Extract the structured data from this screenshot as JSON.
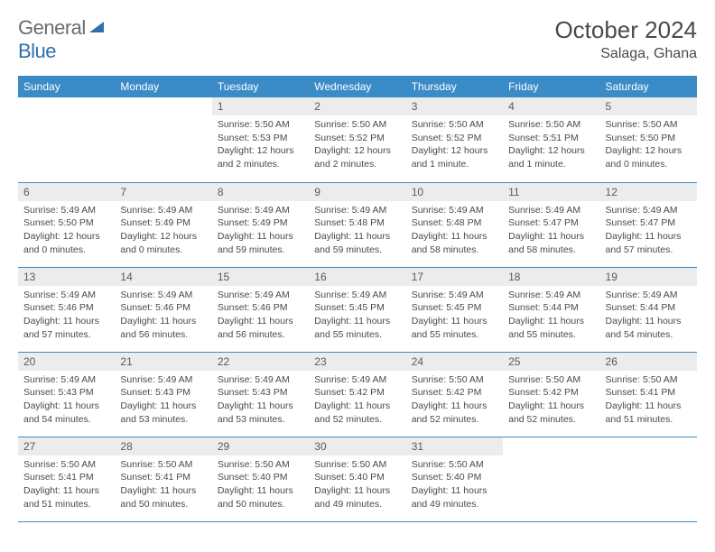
{
  "brand": {
    "part1": "General",
    "part2": "Blue"
  },
  "title": "October 2024",
  "location": "Salaga, Ghana",
  "colors": {
    "header_bg": "#3b8bc7",
    "header_text": "#ffffff",
    "daynum_bg": "#ececec",
    "text": "#4a4a4a",
    "logo_gray": "#6b6b6b",
    "logo_blue": "#2f6fae",
    "border": "#3b8bc7"
  },
  "weekdays": [
    "Sunday",
    "Monday",
    "Tuesday",
    "Wednesday",
    "Thursday",
    "Friday",
    "Saturday"
  ],
  "weeks": [
    [
      null,
      null,
      {
        "n": "1",
        "sr": "5:50 AM",
        "ss": "5:53 PM",
        "dl": "12 hours and 2 minutes."
      },
      {
        "n": "2",
        "sr": "5:50 AM",
        "ss": "5:52 PM",
        "dl": "12 hours and 2 minutes."
      },
      {
        "n": "3",
        "sr": "5:50 AM",
        "ss": "5:52 PM",
        "dl": "12 hours and 1 minute."
      },
      {
        "n": "4",
        "sr": "5:50 AM",
        "ss": "5:51 PM",
        "dl": "12 hours and 1 minute."
      },
      {
        "n": "5",
        "sr": "5:50 AM",
        "ss": "5:50 PM",
        "dl": "12 hours and 0 minutes."
      }
    ],
    [
      {
        "n": "6",
        "sr": "5:49 AM",
        "ss": "5:50 PM",
        "dl": "12 hours and 0 minutes."
      },
      {
        "n": "7",
        "sr": "5:49 AM",
        "ss": "5:49 PM",
        "dl": "12 hours and 0 minutes."
      },
      {
        "n": "8",
        "sr": "5:49 AM",
        "ss": "5:49 PM",
        "dl": "11 hours and 59 minutes."
      },
      {
        "n": "9",
        "sr": "5:49 AM",
        "ss": "5:48 PM",
        "dl": "11 hours and 59 minutes."
      },
      {
        "n": "10",
        "sr": "5:49 AM",
        "ss": "5:48 PM",
        "dl": "11 hours and 58 minutes."
      },
      {
        "n": "11",
        "sr": "5:49 AM",
        "ss": "5:47 PM",
        "dl": "11 hours and 58 minutes."
      },
      {
        "n": "12",
        "sr": "5:49 AM",
        "ss": "5:47 PM",
        "dl": "11 hours and 57 minutes."
      }
    ],
    [
      {
        "n": "13",
        "sr": "5:49 AM",
        "ss": "5:46 PM",
        "dl": "11 hours and 57 minutes."
      },
      {
        "n": "14",
        "sr": "5:49 AM",
        "ss": "5:46 PM",
        "dl": "11 hours and 56 minutes."
      },
      {
        "n": "15",
        "sr": "5:49 AM",
        "ss": "5:46 PM",
        "dl": "11 hours and 56 minutes."
      },
      {
        "n": "16",
        "sr": "5:49 AM",
        "ss": "5:45 PM",
        "dl": "11 hours and 55 minutes."
      },
      {
        "n": "17",
        "sr": "5:49 AM",
        "ss": "5:45 PM",
        "dl": "11 hours and 55 minutes."
      },
      {
        "n": "18",
        "sr": "5:49 AM",
        "ss": "5:44 PM",
        "dl": "11 hours and 55 minutes."
      },
      {
        "n": "19",
        "sr": "5:49 AM",
        "ss": "5:44 PM",
        "dl": "11 hours and 54 minutes."
      }
    ],
    [
      {
        "n": "20",
        "sr": "5:49 AM",
        "ss": "5:43 PM",
        "dl": "11 hours and 54 minutes."
      },
      {
        "n": "21",
        "sr": "5:49 AM",
        "ss": "5:43 PM",
        "dl": "11 hours and 53 minutes."
      },
      {
        "n": "22",
        "sr": "5:49 AM",
        "ss": "5:43 PM",
        "dl": "11 hours and 53 minutes."
      },
      {
        "n": "23",
        "sr": "5:49 AM",
        "ss": "5:42 PM",
        "dl": "11 hours and 52 minutes."
      },
      {
        "n": "24",
        "sr": "5:50 AM",
        "ss": "5:42 PM",
        "dl": "11 hours and 52 minutes."
      },
      {
        "n": "25",
        "sr": "5:50 AM",
        "ss": "5:42 PM",
        "dl": "11 hours and 52 minutes."
      },
      {
        "n": "26",
        "sr": "5:50 AM",
        "ss": "5:41 PM",
        "dl": "11 hours and 51 minutes."
      }
    ],
    [
      {
        "n": "27",
        "sr": "5:50 AM",
        "ss": "5:41 PM",
        "dl": "11 hours and 51 minutes."
      },
      {
        "n": "28",
        "sr": "5:50 AM",
        "ss": "5:41 PM",
        "dl": "11 hours and 50 minutes."
      },
      {
        "n": "29",
        "sr": "5:50 AM",
        "ss": "5:40 PM",
        "dl": "11 hours and 50 minutes."
      },
      {
        "n": "30",
        "sr": "5:50 AM",
        "ss": "5:40 PM",
        "dl": "11 hours and 49 minutes."
      },
      {
        "n": "31",
        "sr": "5:50 AM",
        "ss": "5:40 PM",
        "dl": "11 hours and 49 minutes."
      },
      null,
      null
    ]
  ],
  "labels": {
    "sunrise": "Sunrise:",
    "sunset": "Sunset:",
    "daylight": "Daylight:"
  }
}
